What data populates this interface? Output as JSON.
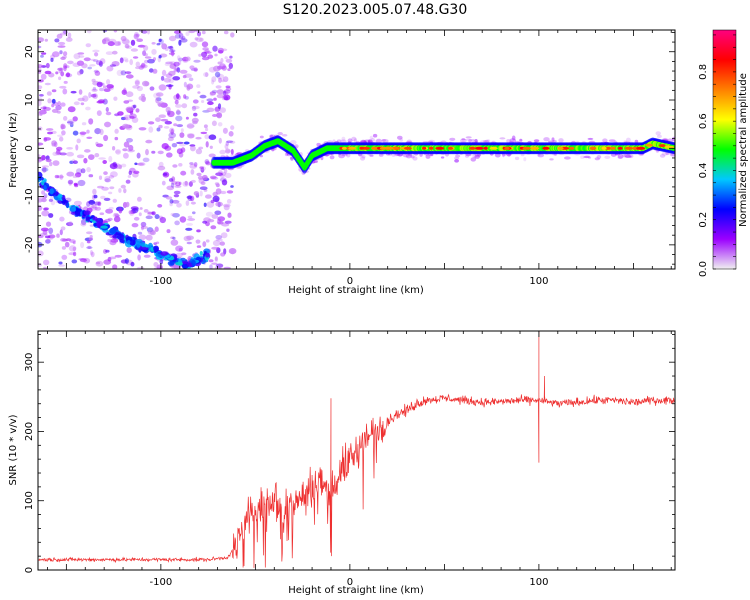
{
  "figure": {
    "title": "S120.2023.005.07.48.G30"
  },
  "chart_data": [
    {
      "type": "heatmap",
      "title": "S120.2023.005.07.48.G30",
      "xlabel": "Height of straight line (km)",
      "ylabel": "Frequency (Hz)",
      "xlim": [
        -165,
        172
      ],
      "ylim": [
        -25,
        24.5
      ],
      "x_ticks": [
        -100,
        0,
        100
      ],
      "y_ticks": [
        -20,
        -10,
        0,
        10,
        20
      ],
      "colormap": [
        "#f0f0f0",
        "#9b00ff",
        "#0000ff",
        "#00c8ff",
        "#00ff00",
        "#ffff00",
        "#ff8000",
        "#ff0000",
        "#ff007f"
      ],
      "colorbar": {
        "label": "Normalized spectral amplitude",
        "ticks": [
          0.0,
          0.2,
          0.4,
          0.6,
          0.8
        ],
        "range": [
          0,
          0.97
        ]
      },
      "ridge": {
        "x": [
          -72,
          -62,
          -52,
          -45,
          -38,
          -30,
          -24,
          -20,
          -12,
          0,
          20,
          40,
          60,
          80,
          100,
          120,
          140,
          155,
          160,
          172
        ],
        "y": [
          -3,
          -3,
          -1.5,
          0.5,
          1.5,
          -0.5,
          -4,
          -1.5,
          0,
          0,
          0,
          0,
          0,
          0,
          0,
          0,
          0,
          0,
          1,
          0
        ]
      },
      "chirp": {
        "x": [
          -165,
          -155,
          -145,
          -135,
          -125,
          -115,
          -105,
          -95,
          -85,
          -75
        ],
        "y": [
          -6,
          -10,
          -13,
          -15,
          -17.5,
          -19.5,
          -21,
          -23,
          -24,
          -22
        ]
      }
    },
    {
      "type": "line",
      "title": "",
      "xlabel": "Height of straight line (km)",
      "ylabel": "SNR (10 * v/v)",
      "xlim": [
        -165,
        172
      ],
      "ylim": [
        0,
        345
      ],
      "x_ticks": [
        -100,
        0,
        100
      ],
      "y_ticks": [
        0,
        100,
        200,
        300
      ],
      "color": "#ee3030",
      "series": [
        {
          "name": "",
          "x": [
            -165,
            -150,
            -135,
            -120,
            -105,
            -90,
            -75,
            -65,
            -60,
            -55,
            -50,
            -45,
            -40,
            -35,
            -30,
            -25,
            -20,
            -15,
            -10,
            -5,
            0,
            5,
            10,
            15,
            20,
            25,
            30,
            35,
            40,
            50,
            60,
            70,
            80,
            90,
            100,
            110,
            120,
            130,
            140,
            150,
            160,
            172
          ],
          "y": [
            15,
            15,
            15,
            15,
            15,
            15,
            15,
            18,
            35,
            70,
            85,
            95,
            110,
            85,
            100,
            105,
            120,
            130,
            115,
            140,
            160,
            175,
            190,
            205,
            215,
            225,
            230,
            240,
            245,
            248,
            245,
            242,
            243,
            245,
            245,
            240,
            242,
            245,
            245,
            242,
            245,
            245
          ]
        }
      ],
      "spikes": [
        {
          "x": -10,
          "y": 248
        },
        {
          "x": 100,
          "y": 345
        },
        {
          "x": 100,
          "y": 155
        },
        {
          "x": 103,
          "y": 280
        }
      ]
    }
  ]
}
